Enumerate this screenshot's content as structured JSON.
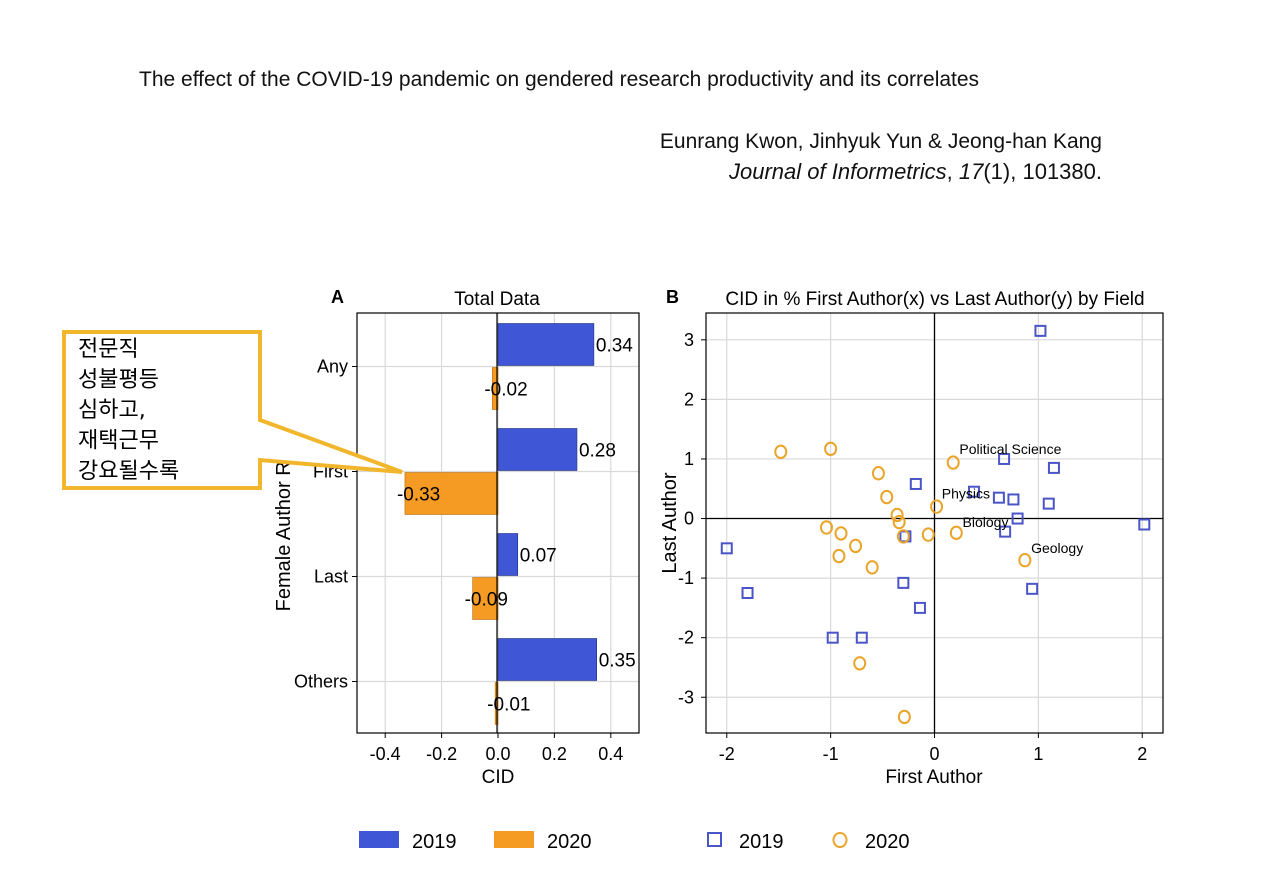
{
  "header": {
    "title": "The effect of the COVID-19 pandemic on gendered research productivity and its correlates",
    "authors": "Eunrang Kwon, Jinhyuk Yun & Jeong-han Kang",
    "journal_name": "Journal of Informetrics",
    "journal_sep": ", ",
    "journal_volume": "17",
    "journal_rest": "(1), 101380."
  },
  "callout": {
    "lines": [
      "전문직",
      "성불평등",
      "심하고,",
      "재택근무",
      "강요될수록"
    ]
  },
  "colors": {
    "c2019_bar": "#3f57d6",
    "c2020_bar": "#f59a23",
    "c2019_marker": "#4a55c8",
    "c2020_marker": "#eaa42a",
    "callout_border": "#f1b62b",
    "grid": "#d9d9d9"
  },
  "chart_data": [
    {
      "panel": "A",
      "type": "bar",
      "orientation": "horizontal",
      "title": "Total Data",
      "xlabel": "CID",
      "ylabel": "Female Author Role",
      "xlim": [
        -0.5,
        0.5
      ],
      "xticks": [
        -0.4,
        -0.2,
        0.0,
        0.2,
        0.4
      ],
      "xtick_labels": [
        "-0.4",
        "-0.2",
        "0.0",
        "0.2",
        "0.4"
      ],
      "categories": [
        "Any",
        "First",
        "Last",
        "Others"
      ],
      "series": [
        {
          "name": "2019",
          "values": [
            0.34,
            0.28,
            0.07,
            0.35
          ],
          "labels": [
            "0.34",
            "0.28",
            "0.07",
            "0.35"
          ]
        },
        {
          "name": "2020",
          "values": [
            -0.02,
            -0.33,
            -0.09,
            -0.01
          ],
          "labels": [
            "-0.02",
            "-0.33",
            "-0.09",
            "-0.01"
          ]
        }
      ],
      "legend": [
        "2019",
        "2020"
      ],
      "grid": true
    },
    {
      "panel": "B",
      "type": "scatter",
      "title": "CID in % First Author(x) vs Last Author(y) by Field",
      "xlabel": "First Author",
      "ylabel": "Last Author",
      "xlim": [
        -2.2,
        2.2
      ],
      "ylim": [
        -3.6,
        3.45
      ],
      "xticks": [
        -2,
        -1,
        0,
        1,
        2
      ],
      "yticks": [
        3,
        2,
        1,
        0,
        -1,
        -2,
        -3
      ],
      "xtick_labels": [
        "-2",
        "-1",
        "0",
        "1",
        "2"
      ],
      "ytick_labels": [
        "3",
        "2",
        "1",
        "0",
        "-1",
        "-2",
        "-3"
      ],
      "series": [
        {
          "name": "2019",
          "marker": "square",
          "points": [
            [
              1.02,
              3.15
            ],
            [
              -0.18,
              0.58
            ],
            [
              0.67,
              1.0
            ],
            [
              1.15,
              0.85
            ],
            [
              0.38,
              0.45
            ],
            [
              0.62,
              0.35
            ],
            [
              0.76,
              0.32
            ],
            [
              1.1,
              0.25
            ],
            [
              0.8,
              0.0
            ],
            [
              0.68,
              -0.22
            ],
            [
              -0.28,
              -0.3
            ],
            [
              2.02,
              -0.1
            ],
            [
              -2.0,
              -0.5
            ],
            [
              -1.8,
              -1.25
            ],
            [
              -0.3,
              -1.08
            ],
            [
              0.94,
              -1.18
            ],
            [
              -0.14,
              -1.5
            ],
            [
              -0.98,
              -2.0
            ],
            [
              -0.7,
              -2.0
            ]
          ]
        },
        {
          "name": "2020",
          "marker": "circle",
          "points": [
            [
              -1.48,
              1.12
            ],
            [
              -1.0,
              1.17
            ],
            [
              0.18,
              0.94
            ],
            [
              -0.54,
              0.76
            ],
            [
              -0.46,
              0.36
            ],
            [
              -0.36,
              0.06
            ],
            [
              0.02,
              0.2
            ],
            [
              -0.34,
              -0.06
            ],
            [
              -1.04,
              -0.15
            ],
            [
              -0.9,
              -0.25
            ],
            [
              -0.3,
              -0.3
            ],
            [
              -0.06,
              -0.27
            ],
            [
              0.21,
              -0.24
            ],
            [
              -0.76,
              -0.46
            ],
            [
              -0.92,
              -0.63
            ],
            [
              -0.6,
              -0.82
            ],
            [
              0.87,
              -0.7
            ],
            [
              -0.72,
              -2.43
            ],
            [
              -0.29,
              -3.33
            ]
          ]
        }
      ],
      "annotations": [
        {
          "text": "Political Science",
          "x": 0.24,
          "y": 1.08
        },
        {
          "text": "Physics",
          "x": 0.07,
          "y": 0.34
        },
        {
          "text": "Biology",
          "x": 0.27,
          "y": -0.14
        },
        {
          "text": "Geology",
          "x": 0.93,
          "y": -0.58
        }
      ],
      "legend": [
        "2019",
        "2020"
      ],
      "grid": true
    }
  ],
  "panel_letters": {
    "a": "A",
    "b": "B"
  }
}
